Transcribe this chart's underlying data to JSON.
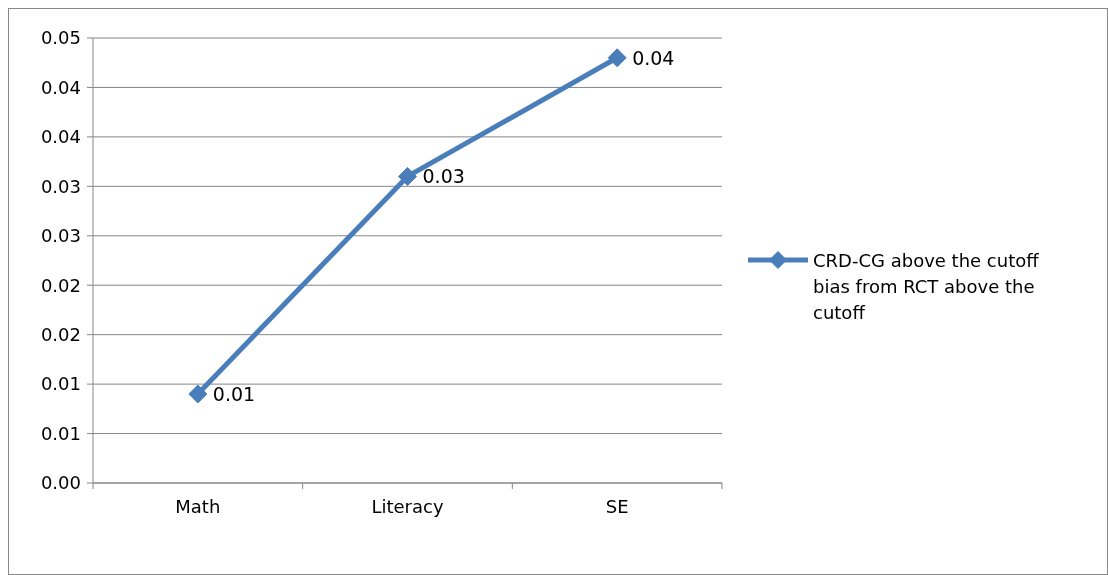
{
  "chart_data": {
    "type": "line",
    "categories": [
      "Math",
      "Literacy",
      "SE"
    ],
    "series": [
      {
        "name": "CRD-CG above the cutoff bias from RCT above the cutoff",
        "color": "#4a7ebb",
        "values": [
          0.009,
          0.031,
          0.043
        ],
        "value_labels": [
          "0.01",
          "0.03",
          "0.04"
        ]
      }
    ],
    "ylim": [
      0,
      0.045
    ],
    "yticks": [
      {
        "value": 0,
        "label": "0.00"
      },
      {
        "value": 0.005,
        "label": "0.01"
      },
      {
        "value": 0.01,
        "label": "0.01"
      },
      {
        "value": 0.015,
        "label": "0.02"
      },
      {
        "value": 0.02,
        "label": "0.02"
      },
      {
        "value": 0.025,
        "label": "0.03"
      },
      {
        "value": 0.03,
        "label": "0.03"
      },
      {
        "value": 0.035,
        "label": "0.04"
      },
      {
        "value": 0.04,
        "label": "0.04"
      },
      {
        "value": 0.045,
        "label": "0.05"
      }
    ],
    "grid": "y",
    "legend": "right",
    "marker": "diamond",
    "line_style": "solid"
  }
}
